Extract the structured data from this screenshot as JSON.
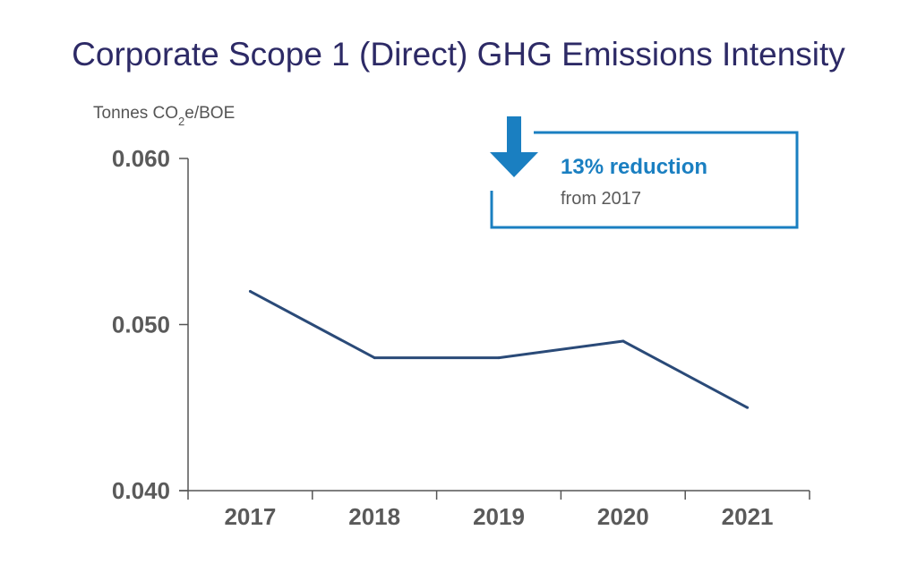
{
  "chart_data": {
    "type": "line",
    "title": "Corporate Scope 1 (Direct) GHG Emissions Intensity",
    "ylabel_parts": {
      "pre": "Tonnes CO",
      "sub": "2",
      "post": "e/BOE"
    },
    "categories": [
      "2017",
      "2018",
      "2019",
      "2020",
      "2021"
    ],
    "values": [
      0.052,
      0.048,
      0.048,
      0.049,
      0.045
    ],
    "ylim": [
      0.04,
      0.06
    ],
    "yticks": [
      {
        "value": 0.06,
        "label": "0.060"
      },
      {
        "value": 0.05,
        "label": "0.050"
      },
      {
        "value": 0.04,
        "label": "0.040"
      }
    ],
    "grid": false,
    "colors": {
      "line": "#2a4a78",
      "axis": "#555555",
      "accent": "#1a7fc1",
      "title": "#2d2a66"
    },
    "annotation": {
      "headline": "13% reduction",
      "subtext": "from 2017",
      "icon": "down-arrow-icon"
    }
  }
}
